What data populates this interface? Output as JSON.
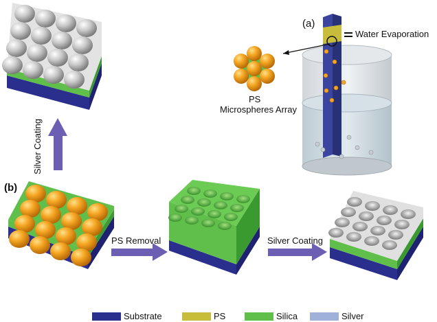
{
  "panels": {
    "a_label": "(a)",
    "b_label": "(b)"
  },
  "annotations": {
    "water_evaporation": "Water Evaporation",
    "ps_title": "PS",
    "ps_subtitle": "Microspheres Array"
  },
  "arrows": {
    "silver_coating_vertical": "Silver Coating",
    "ps_removal": "PS Removal",
    "silver_coating_horizontal": "Silver Coating"
  },
  "legend": [
    {
      "label": "Substrate",
      "color": "#2a2f8e"
    },
    {
      "label": "PS",
      "color": "#c8bd3a"
    },
    {
      "label": "Silica",
      "color": "#5fbf4a"
    },
    {
      "label": "Silver",
      "color": "#9fb1d9"
    }
  ],
  "colors": {
    "arrow": "#6c5fb3",
    "ps_sphere": "#f3a21c",
    "silica": "#5fbf4a",
    "silver": "#c9c9c9",
    "substrate": "#2a2f8e",
    "beaker": "#d5dbe0",
    "slide": "#3b45a0"
  }
}
